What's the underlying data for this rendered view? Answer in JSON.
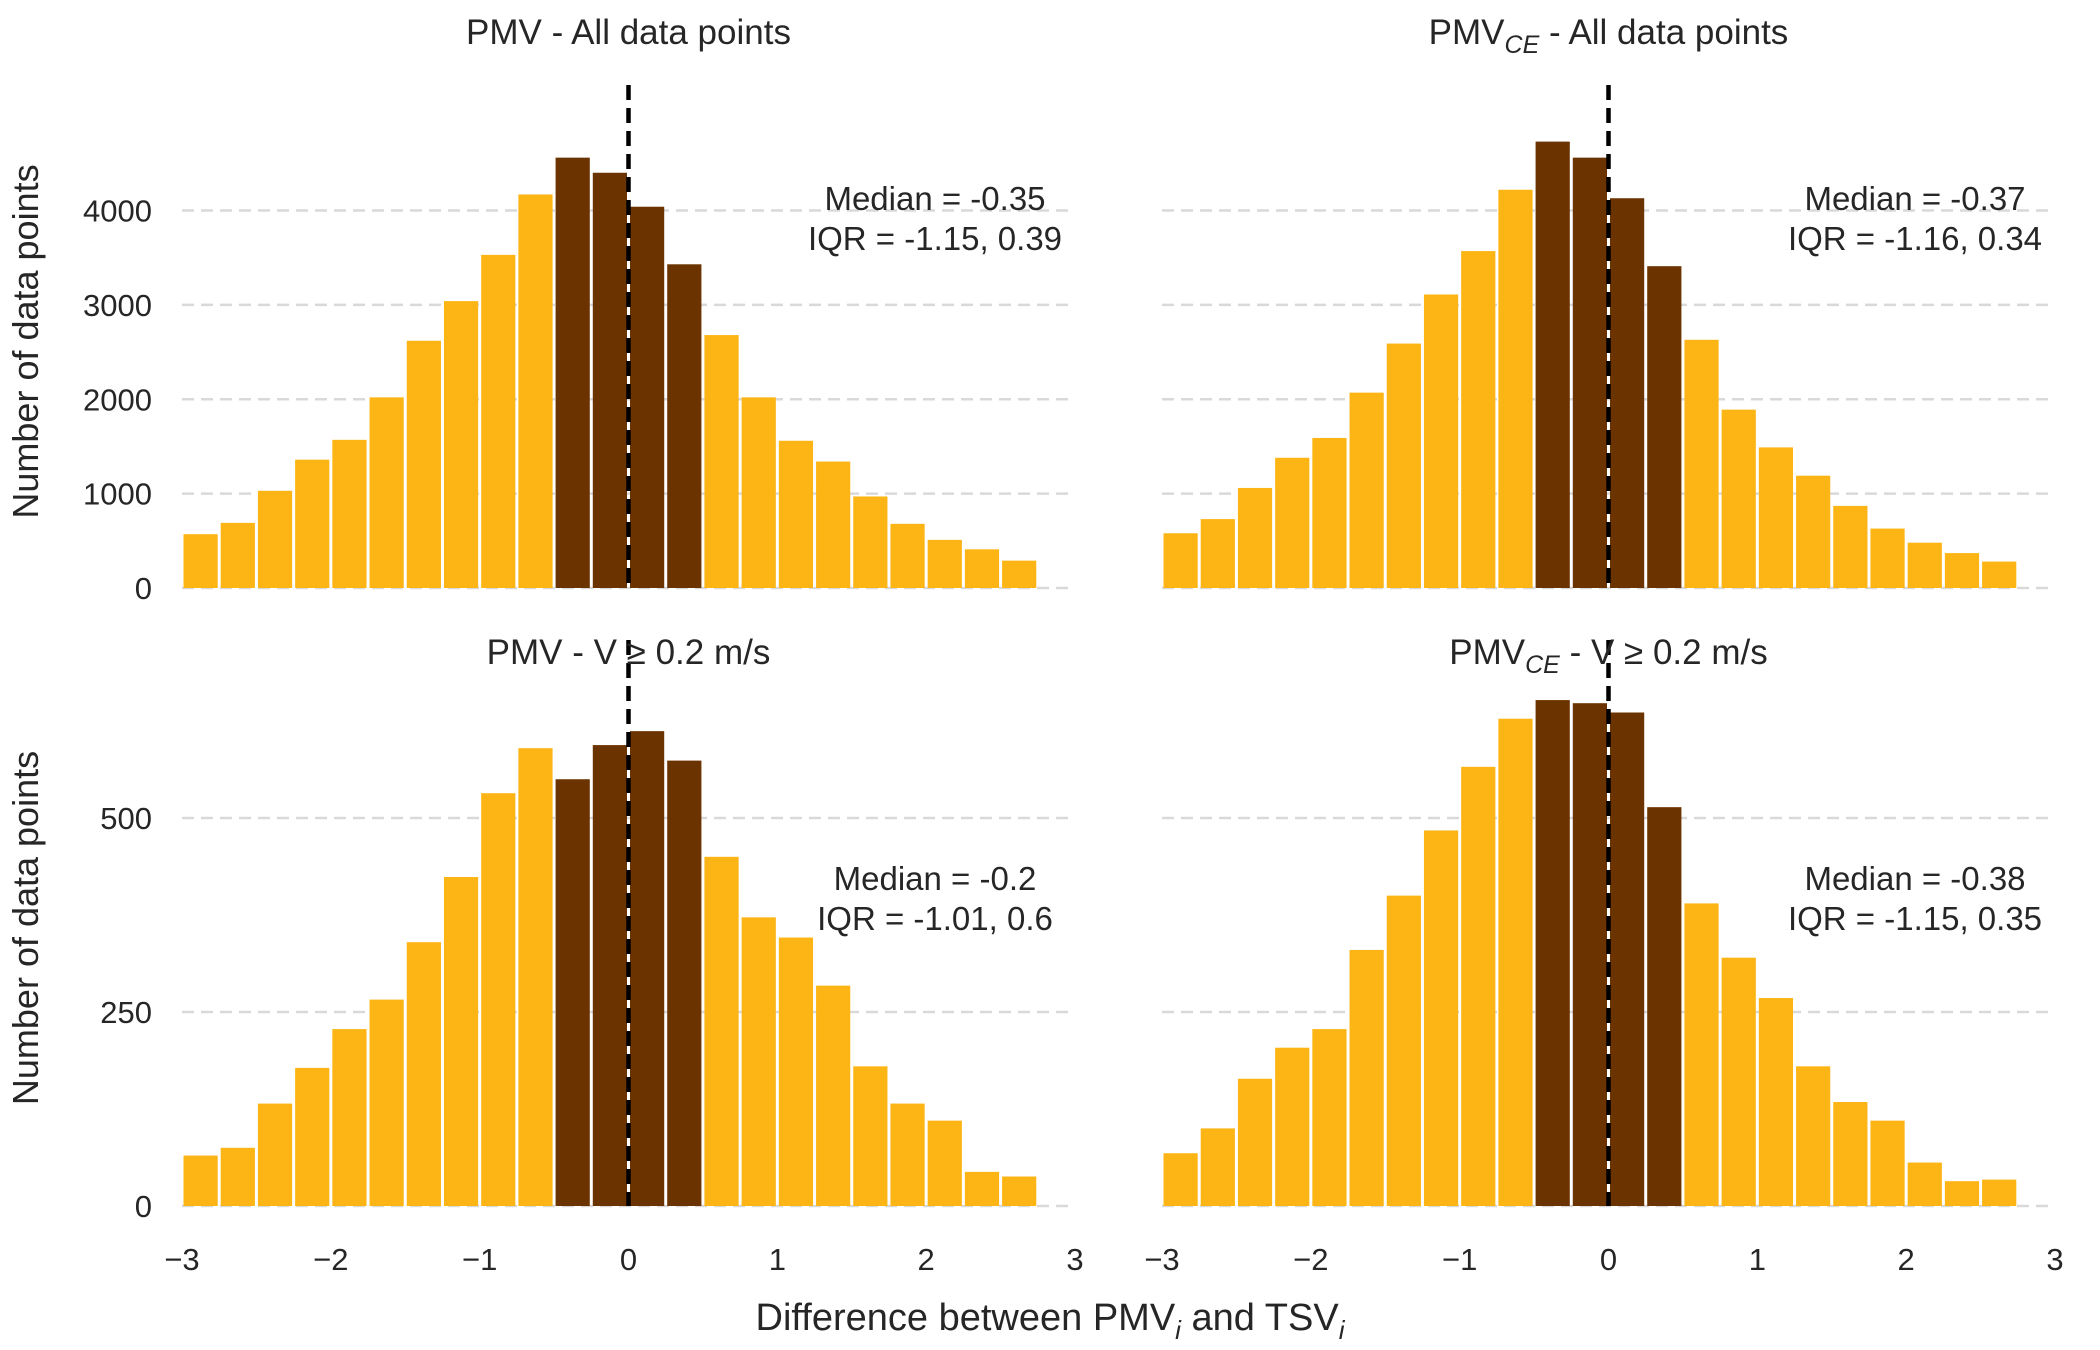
{
  "figure": {
    "xlabel_main": "Difference between PMV",
    "xlabel_sub1": "i",
    "xlabel_mid": " and TSV",
    "xlabel_sub2": "i"
  },
  "colors": {
    "bar_light": "#FDB515",
    "bar_dark": "#6B3300",
    "grid": "#d9d9d9",
    "zero_line": "#000000",
    "text": "#262626"
  },
  "chart_data": [
    {
      "type": "bar",
      "title": {
        "pre": "PMV",
        "sub": "",
        "post": " - All data points"
      },
      "ylabel": "Number of data points",
      "xlim": [
        -3,
        3
      ],
      "ylim": [
        0,
        4800
      ],
      "yticks": [
        "0",
        "1000",
        "2000",
        "3000",
        "4000"
      ],
      "ytick_values": [
        0,
        1000,
        2000,
        3000,
        4000
      ],
      "xticks": [
        "−3",
        "−2",
        "−1",
        "0",
        "1",
        "2",
        "3"
      ],
      "xtick_values": [
        -3,
        -2,
        -1,
        0,
        1,
        2,
        3
      ],
      "bin_width": 0.25,
      "bin_starts": [
        -3,
        -2.75,
        -2.5,
        -2.25,
        -2,
        -1.75,
        -1.5,
        -1.25,
        -1,
        -0.75,
        -0.5,
        -0.25,
        0,
        0.25,
        0.5,
        0.75,
        1,
        1.25,
        1.5,
        1.75,
        2,
        2.25,
        2.5
      ],
      "values": [
        570,
        690,
        1030,
        1360,
        1570,
        2020,
        2620,
        3040,
        3530,
        4170,
        4560,
        4400,
        4040,
        3430,
        2680,
        2020,
        1560,
        1340,
        970,
        680,
        510,
        410,
        290
      ],
      "highlight_range": [
        -0.5,
        0.5
      ],
      "annotation": {
        "median": "Median = -0.35",
        "iqr": "IQR = -1.15, 0.39"
      },
      "show_xticks": false,
      "show_ylabel": true
    },
    {
      "type": "bar",
      "title": {
        "pre": "PMV",
        "sub": "CE",
        "post": " - All data points"
      },
      "ylabel": "",
      "xlim": [
        -3,
        3
      ],
      "ylim": [
        0,
        4800
      ],
      "yticks": [],
      "ytick_values": [
        0,
        1000,
        2000,
        3000,
        4000
      ],
      "xticks": [
        "−3",
        "−2",
        "−1",
        "0",
        "1",
        "2",
        "3"
      ],
      "xtick_values": [
        -3,
        -2,
        -1,
        0,
        1,
        2,
        3
      ],
      "bin_width": 0.25,
      "bin_starts": [
        -3,
        -2.75,
        -2.5,
        -2.25,
        -2,
        -1.75,
        -1.5,
        -1.25,
        -1,
        -0.75,
        -0.5,
        -0.25,
        0,
        0.25,
        0.5,
        0.75,
        1,
        1.25,
        1.5,
        1.75,
        2,
        2.25,
        2.5
      ],
      "values": [
        580,
        730,
        1060,
        1380,
        1590,
        2070,
        2590,
        3110,
        3570,
        4220,
        4730,
        4560,
        4130,
        3410,
        2630,
        1890,
        1490,
        1190,
        870,
        630,
        480,
        370,
        280
      ],
      "highlight_range": [
        -0.5,
        0.5
      ],
      "annotation": {
        "median": "Median = -0.37",
        "iqr": "IQR = -1.16, 0.34"
      },
      "show_xticks": false,
      "show_ylabel": false
    },
    {
      "type": "bar",
      "title": {
        "pre": "PMV",
        "sub": "",
        "post": " - V ≥ 0.2 m/s"
      },
      "ylabel": "Number of data points",
      "xlim": [
        -3,
        3
      ],
      "ylim": [
        0,
        665
      ],
      "yticks": [
        "0",
        "250",
        "500"
      ],
      "ytick_values": [
        0,
        250,
        500
      ],
      "xticks": [
        "−3",
        "−2",
        "−1",
        "0",
        "1",
        "2",
        "3"
      ],
      "xtick_values": [
        -3,
        -2,
        -1,
        0,
        1,
        2,
        3
      ],
      "bin_width": 0.25,
      "bin_starts": [
        -3,
        -2.75,
        -2.5,
        -2.25,
        -2,
        -1.75,
        -1.5,
        -1.25,
        -1,
        -0.75,
        -0.5,
        -0.25,
        0,
        0.25,
        0.5,
        0.75,
        1,
        1.25,
        1.5,
        1.75,
        2,
        2.25,
        2.5
      ],
      "values": [
        65,
        75,
        132,
        178,
        228,
        266,
        340,
        424,
        532,
        590,
        550,
        594,
        612,
        574,
        450,
        372,
        346,
        284,
        180,
        132,
        110,
        44,
        38
      ],
      "highlight_range": [
        -0.5,
        0.5
      ],
      "annotation": {
        "median": "Median = -0.2",
        "iqr": "IQR = -1.01, 0.6"
      },
      "show_xticks": true,
      "show_ylabel": true
    },
    {
      "type": "bar",
      "title": {
        "pre": "PMV",
        "sub": "CE",
        "post": " - V ≥ 0.2 m/s"
      },
      "ylabel": "",
      "xlim": [
        -3,
        3
      ],
      "ylim": [
        0,
        665
      ],
      "yticks": [],
      "ytick_values": [
        0,
        250,
        500
      ],
      "xticks": [
        "−3",
        "−2",
        "−1",
        "0",
        "1",
        "2",
        "3"
      ],
      "xtick_values": [
        -3,
        -2,
        -1,
        0,
        1,
        2,
        3
      ],
      "bin_width": 0.25,
      "bin_starts": [
        -3,
        -2.75,
        -2.5,
        -2.25,
        -2,
        -1.75,
        -1.5,
        -1.25,
        -1,
        -0.75,
        -0.5,
        -0.25,
        0,
        0.25,
        0.5,
        0.75,
        1,
        1.25,
        1.5,
        1.75,
        2,
        2.25,
        2.5
      ],
      "values": [
        68,
        100,
        164,
        204,
        228,
        330,
        400,
        484,
        566,
        628,
        652,
        648,
        636,
        514,
        390,
        320,
        268,
        180,
        134,
        110,
        56,
        32,
        34
      ],
      "highlight_range": [
        -0.5,
        0.5
      ],
      "annotation": {
        "median": "Median = -0.38",
        "iqr": "IQR = -1.15, 0.35"
      },
      "show_xticks": true,
      "show_ylabel": false
    }
  ]
}
